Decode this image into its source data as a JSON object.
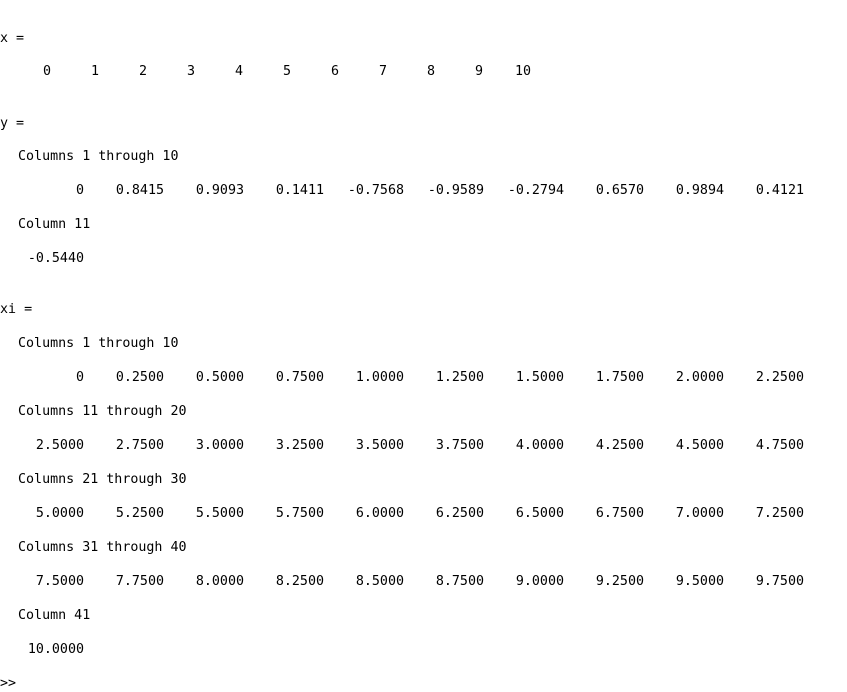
{
  "console": {
    "x_block": {
      "label": "x =",
      "values": [
        "0",
        "1",
        "2",
        "3",
        "4",
        "5",
        "6",
        "7",
        "8",
        "9",
        "10"
      ]
    },
    "y_block": {
      "label": "y =",
      "segments": [
        {
          "header": "Columns 1 through 10",
          "values": [
            "0",
            "0.8415",
            "0.9093",
            "0.1411",
            "-0.7568",
            "-0.9589",
            "-0.2794",
            "0.6570",
            "0.9894",
            "0.4121"
          ]
        },
        {
          "header": "Column 11",
          "values": [
            "-0.5440"
          ]
        }
      ]
    },
    "xi_block": {
      "label": "xi =",
      "segments": [
        {
          "header": "Columns 1 through 10",
          "values": [
            "0",
            "0.2500",
            "0.5000",
            "0.7500",
            "1.0000",
            "1.2500",
            "1.5000",
            "1.7500",
            "2.0000",
            "2.2500"
          ]
        },
        {
          "header": "Columns 11 through 20",
          "values": [
            "2.5000",
            "2.7500",
            "3.0000",
            "3.2500",
            "3.5000",
            "3.7500",
            "4.0000",
            "4.2500",
            "4.5000",
            "4.7500"
          ]
        },
        {
          "header": "Columns 21 through 30",
          "values": [
            "5.0000",
            "5.2500",
            "5.5000",
            "5.7500",
            "6.0000",
            "6.2500",
            "6.5000",
            "6.7500",
            "7.0000",
            "7.2500"
          ]
        },
        {
          "header": "Columns 31 through 40",
          "values": [
            "7.5000",
            "7.7500",
            "8.0000",
            "8.2500",
            "8.5000",
            "8.7500",
            "9.0000",
            "9.2500",
            "9.5000",
            "9.7500"
          ]
        },
        {
          "header": "Column 41",
          "values": [
            "10.0000"
          ]
        }
      ]
    },
    "prompt": ">>"
  }
}
